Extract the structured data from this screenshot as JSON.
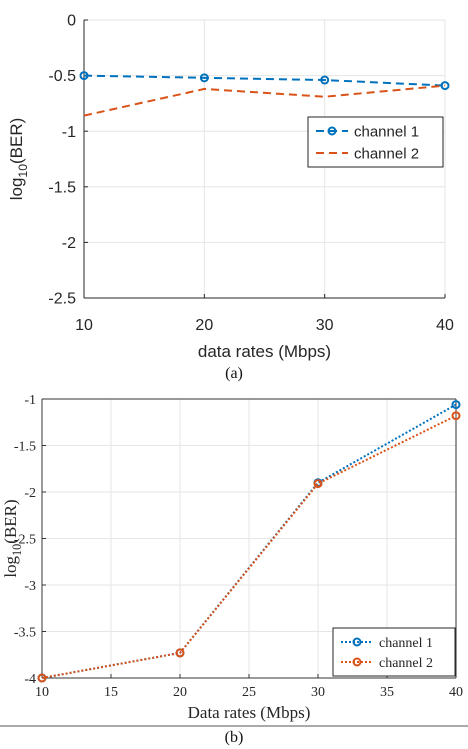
{
  "chart_data": [
    {
      "type": "line",
      "font": "sans",
      "x": [
        10,
        20,
        30,
        40
      ],
      "xlim": [
        10,
        40
      ],
      "ylim": [
        -2.5,
        0
      ],
      "xticks": [
        10,
        20,
        30,
        40
      ],
      "yticks": [
        0,
        -0.5,
        -1,
        -1.5,
        -2,
        -2.5
      ],
      "xtick_labels": [
        "10",
        "20",
        "30",
        "40"
      ],
      "ytick_labels": [
        "0",
        "-0.5",
        "-1",
        "-1.5",
        "-2",
        "-2.5"
      ],
      "xlabel": "data rates (Mbps)",
      "ylabel_base": "log",
      "ylabel_sub": "10",
      "ylabel_tail": "(BER)",
      "grid": true,
      "legend_position": "middle-right",
      "caption": "(a)",
      "series": [
        {
          "name": "channel 1",
          "values": [
            -0.5,
            -0.52,
            -0.54,
            -0.59
          ],
          "color": "#0072BD",
          "dash": "dashed",
          "marker": "circle"
        },
        {
          "name": "channel 2",
          "values": [
            -0.86,
            -0.62,
            -0.69,
            -0.59
          ],
          "color": "#D95319",
          "dash": "dashed",
          "marker": "none"
        }
      ]
    },
    {
      "type": "line",
      "font": "serif",
      "x": [
        10,
        20,
        30,
        40
      ],
      "xlim": [
        10,
        40
      ],
      "ylim": [
        -4,
        -1
      ],
      "xticks": [
        10,
        15,
        20,
        25,
        30,
        35,
        40
      ],
      "yticks": [
        -1,
        -1.5,
        -2,
        -2.5,
        -3,
        -3.5,
        -4
      ],
      "xtick_labels": [
        "10",
        "15",
        "20",
        "25",
        "30",
        "35",
        "40"
      ],
      "ytick_labels": [
        "-1",
        "-1.5",
        "-2",
        "-2.5",
        "-3",
        "-3.5",
        "-4"
      ],
      "xlabel": "Data rates (Mbps)",
      "ylabel_base": "log",
      "ylabel_sub": "10",
      "ylabel_tail": "(BER)",
      "grid": true,
      "legend_position": "bottom-right",
      "caption": "(b)",
      "series": [
        {
          "name": "channel 1",
          "values": [
            -4,
            -3.73,
            -1.9,
            -1.06
          ],
          "color": "#0072BD",
          "dash": "dotted",
          "marker": "circle"
        },
        {
          "name": "channel 2",
          "values": [
            -4,
            -3.73,
            -1.91,
            -1.18
          ],
          "color": "#D95319",
          "dash": "dotted",
          "marker": "circle"
        }
      ]
    }
  ]
}
